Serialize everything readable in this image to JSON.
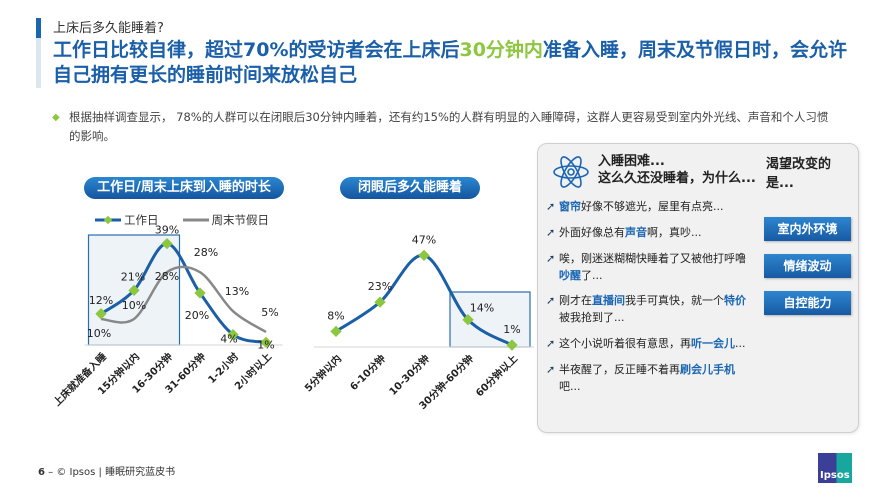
{
  "header": {
    "subtitle": "上床后多久能睡着?",
    "headline_part1": "工作日比较自律，超过70%的受访者会在上床后",
    "headline_highlight": "30分钟内",
    "headline_part2": "准备入睡，周末及节假日时，会允许自己拥有更长的睡前时间来放松自己"
  },
  "bullet": {
    "text": "根据抽样调查显示， 78%的人群可以在闭眼后30分钟内睡着，还有约15%的人群有明显的入睡障碍，这群人更容易受到室内外光线、声音和个人习惯的影响。"
  },
  "colors": {
    "primary_blue": "#1a5fa8",
    "accent_green": "#8dc63f",
    "grey_line": "#888888",
    "highlight_box": "#eef3f8"
  },
  "chart_data": [
    {
      "type": "line",
      "title": "工作日/周末上床到入睡的时长",
      "categories": [
        "上床就准备入睡",
        "15分钟以内",
        "16-30分钟",
        "31-60分钟",
        "1-2小时",
        "2小时以上"
      ],
      "series": [
        {
          "name": "工作日",
          "values": [
            12,
            21,
            39,
            20,
            4,
            1
          ],
          "labels": [
            "12%",
            "21%",
            "39%",
            "20%",
            "4%",
            "1%"
          ]
        },
        {
          "name": "周末节假日",
          "values": [
            10,
            10,
            28,
            28,
            13,
            5
          ],
          "labels": [
            "10%",
            "10%",
            "28%",
            "28%",
            "13%",
            "5%"
          ]
        }
      ],
      "highlight_range": [
        "上床就准备入睡",
        "16-30分钟"
      ],
      "legend_position": "top",
      "grid": false
    },
    {
      "type": "line",
      "title": "闭眼后多久能睡着",
      "categories": [
        "5分钟以内",
        "6-10分钟",
        "10-30分钟",
        "30分钟-60分钟",
        "60分钟以上"
      ],
      "series": [
        {
          "name": "闭眼后",
          "values": [
            8,
            23,
            47,
            14,
            1
          ],
          "labels": [
            "8%",
            "23%",
            "47%",
            "14%",
            "1%"
          ]
        }
      ],
      "highlight_range": [
        "30分钟-60分钟",
        "60分钟以上"
      ],
      "grid": false
    }
  ],
  "charts": {
    "left_title": "工作日/周末上床到入睡的时长",
    "right_title": "闭眼后多久能睡着",
    "legend": [
      "工作日",
      "周末节假日"
    ]
  },
  "panel": {
    "question1_line1": "入睡困难...",
    "question1_line2": "这么久还没睡着，为什么...",
    "question2": "渴望改变的是...",
    "arrow_glyph": "➚",
    "lines": [
      {
        "pre": "",
        "kw": "窗帘",
        "post": "好像不够遮光，屋里有点亮..."
      },
      {
        "pre": "外面好像总有",
        "kw": "声音",
        "post": "啊，真吵..."
      },
      {
        "pre": "唉，刚迷迷糊糊快睡着了又被他打呼噜",
        "kw": "吵醒",
        "post": "了..."
      },
      {
        "pre": "刚才在",
        "kw": "直播间",
        "mid": "我手可真快，就一个",
        "kw2": "特价",
        "post": "被我抢到了..."
      },
      {
        "pre": "这个小说听着很有意思，再",
        "kw": "听一会儿",
        "post": "..."
      },
      {
        "pre": "半夜醒了，反正睡不着再",
        "kw": "刷会儿手机",
        "post": "吧..."
      }
    ],
    "tags": [
      "室内外环境",
      "情绪波动",
      "自控能力"
    ]
  },
  "footer": {
    "page": "6",
    "sep": " – ",
    "text": "© Ipsos | 睡眠研究蓝皮书"
  },
  "logo": {
    "text": "Ipsos"
  }
}
